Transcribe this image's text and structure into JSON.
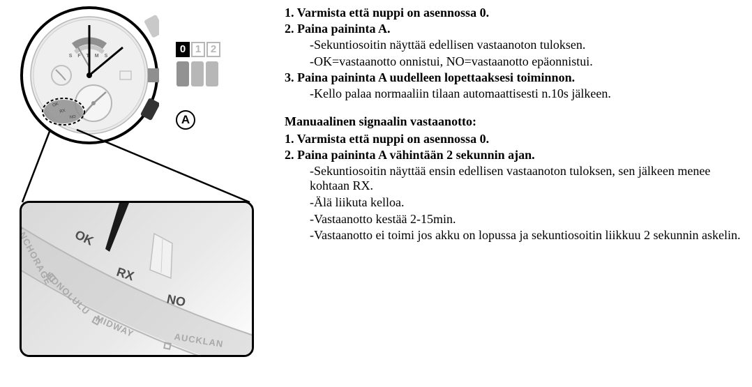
{
  "watch": {
    "pos0": "0",
    "pos1": "1",
    "pos2": "2",
    "button_a": "A",
    "dial_letters": [
      "S",
      "F",
      "T",
      "M",
      "S"
    ],
    "indicator_ok": "OK",
    "indicator_rx": "RX",
    "indicator_no": "NO"
  },
  "detail": {
    "ok": "OK",
    "rx": "RX",
    "no": "NO",
    "cities": {
      "anchorage": "ANCHORAGE",
      "honolulu": "HONOLULU",
      "midway": "MIDWAY",
      "auckland": "AUCKLAN"
    }
  },
  "instructions": {
    "top": [
      {
        "step": "1. Varmista että nuppi on asennossa 0.",
        "subs": []
      },
      {
        "step": "2. Paina paininta A.",
        "subs": [
          "-Sekuntiosoitin näyttää edellisen vastaanoton tuloksen.",
          "-OK=vastaanotto onnistui, NO=vastaanotto epäonnistui."
        ]
      },
      {
        "step": "3. Paina paininta A uudelleen lopettaaksesi toiminnon.",
        "subs": [
          "-Kello palaa normaaliin tilaan automaattisesti n.10s jälkeen."
        ]
      }
    ],
    "section_title": "Manuaalinen signaalin vastaanotto:",
    "bottom": [
      {
        "step": "1. Varmista että nuppi on asennossa 0.",
        "subs": []
      },
      {
        "step": "2. Paina paininta A vähintään 2 sekunnin ajan.",
        "subs": [
          "-Sekuntiosoitin näyttää ensin edellisen vastaanoton tuloksen, sen jälkeen menee kohtaan RX.",
          "-Älä liikuta kelloa.",
          "-Vastaanotto kestää 2-15min.",
          "-Vastaanotto ei toimi jos akku on lopussa ja   sekuntiosoitin liikkuu 2 sekunnin askelin."
        ]
      }
    ]
  },
  "style": {
    "page_bg": "#ffffff",
    "text_color": "#000000",
    "grey_mid": "#b7b7b7",
    "grey_dark": "#929292",
    "grey_light": "#e9e9e9",
    "font_body": 18,
    "font_step": 18,
    "font_detail_scale": 18,
    "font_detail_city": 13
  }
}
